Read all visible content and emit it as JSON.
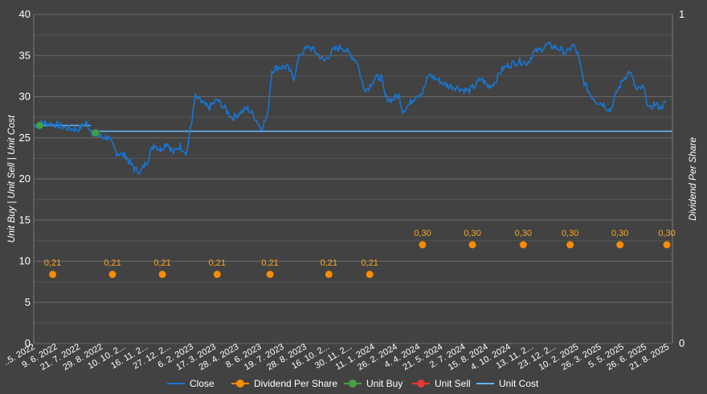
{
  "chart_data": {
    "type": "line",
    "ylabel": "Unit Buy | Unit Sell | Unit Cost",
    "y2label": "Dividend Per Share",
    "ylim": [
      0,
      40
    ],
    "y2lim": [
      0,
      1
    ],
    "yticks": [
      "0",
      "5",
      "10",
      "15",
      "20",
      "25",
      "30",
      "35",
      "40"
    ],
    "y2ticks": [
      "0",
      "1"
    ],
    "grid": true,
    "legend_position": "bottom",
    "x_labels": [
      "..5. 2022",
      "9. 6. 2022",
      "21. 7. 2022",
      "29. 8. 2022",
      "10. 10. 2...",
      "16. 11. 2...",
      "27. 12. 2...",
      "6. 2. 2023",
      "17. 3. 2023",
      "28. 4. 2023",
      "8. 6. 2023",
      "19. 7. 2023",
      "28. 8. 2023",
      "16. 10. 2...",
      "30. 11. 2...",
      "11. 1. 2024",
      "26. 2. 2024",
      "4. 4. 2024",
      "21. 5. 2024",
      "2. 7. 2024",
      "15. 8. 2024",
      "4. 10. 2024",
      "13. 11. 2...",
      "23. 12. 2...",
      "10. 2. 2025",
      "26. 3. 2025",
      "5. 5. 2025",
      "26. 6. 2025",
      "21. 8. 2025"
    ],
    "close_anchors": [
      [
        0,
        26.5
      ],
      [
        0.5,
        26.8
      ],
      [
        1,
        26.6
      ],
      [
        1.5,
        26.2
      ],
      [
        2,
        26.0
      ],
      [
        2.4,
        26.8
      ],
      [
        2.7,
        25.6
      ],
      [
        3,
        25.2
      ],
      [
        3.4,
        25.0
      ],
      [
        3.8,
        23.2
      ],
      [
        4.2,
        22.8
      ],
      [
        4.6,
        21.2
      ],
      [
        4.9,
        20.9
      ],
      [
        5.2,
        22.2
      ],
      [
        5.5,
        24.2
      ],
      [
        5.8,
        23.6
      ],
      [
        6.1,
        24.4
      ],
      [
        6.4,
        23.2
      ],
      [
        6.7,
        24.0
      ],
      [
        7.0,
        23.2
      ],
      [
        7.2,
        26.5
      ],
      [
        7.4,
        30.0
      ],
      [
        7.7,
        29.3
      ],
      [
        8.0,
        28.6
      ],
      [
        8.4,
        29.6
      ],
      [
        8.8,
        28.4
      ],
      [
        9.1,
        27.4
      ],
      [
        9.4,
        28.0
      ],
      [
        9.8,
        28.6
      ],
      [
        10.1,
        27.6
      ],
      [
        10.4,
        26.2
      ],
      [
        10.7,
        27.6
      ],
      [
        10.9,
        33.2
      ],
      [
        11.2,
        33.6
      ],
      [
        11.6,
        33.6
      ],
      [
        11.9,
        32.3
      ],
      [
        12.2,
        35.2
      ],
      [
        12.6,
        36.1
      ],
      [
        13.0,
        35.2
      ],
      [
        13.3,
        34.3
      ],
      [
        13.7,
        35.6
      ],
      [
        14.1,
        36.1
      ],
      [
        14.5,
        35.1
      ],
      [
        14.8,
        34.3
      ],
      [
        15.1,
        31.1
      ],
      [
        15.3,
        31.0
      ],
      [
        15.6,
        32.2
      ],
      [
        15.9,
        32.4
      ],
      [
        16.1,
        29.9
      ],
      [
        16.4,
        29.6
      ],
      [
        16.7,
        30.2
      ],
      [
        16.9,
        28.3
      ],
      [
        17.2,
        29.1
      ],
      [
        17.5,
        30.2
      ],
      [
        17.8,
        30.5
      ],
      [
        18.1,
        32.7
      ],
      [
        18.4,
        32.2
      ],
      [
        18.7,
        31.7
      ],
      [
        19.0,
        31.3
      ],
      [
        19.3,
        31.2
      ],
      [
        19.6,
        30.9
      ],
      [
        19.9,
        30.7
      ],
      [
        20.2,
        31.3
      ],
      [
        20.5,
        32.2
      ],
      [
        20.8,
        31.2
      ],
      [
        21.1,
        31.7
      ],
      [
        21.4,
        33.2
      ],
      [
        21.7,
        33.8
      ],
      [
        22.0,
        34.1
      ],
      [
        22.3,
        34.3
      ],
      [
        22.6,
        34.1
      ],
      [
        22.9,
        35.4
      ],
      [
        23.2,
        35.7
      ],
      [
        23.5,
        36.3
      ],
      [
        23.8,
        36.1
      ],
      [
        24.1,
        35.8
      ],
      [
        24.4,
        35.3
      ],
      [
        24.7,
        36.3
      ],
      [
        24.9,
        35.2
      ],
      [
        25.2,
        31.7
      ],
      [
        25.5,
        30.2
      ],
      [
        25.8,
        29.4
      ],
      [
        26.1,
        29.1
      ],
      [
        26.4,
        28.3
      ],
      [
        26.7,
        30.6
      ],
      [
        27.0,
        32.2
      ],
      [
        27.3,
        33.1
      ],
      [
        27.6,
        30.7
      ],
      [
        27.9,
        31.2
      ],
      [
        28.2,
        28.3
      ],
      [
        28.4,
        29.1
      ],
      [
        28.7,
        28.7
      ],
      [
        28.95,
        29.3
      ]
    ],
    "series": [
      {
        "name": "Close",
        "type": "line",
        "color": "#1976d2"
      },
      {
        "name": "Dividend Per Share",
        "type": "scatter",
        "color": "#fb8c00",
        "axis": "y2",
        "points": [
          {
            "x": 0.95,
            "value": 0.21,
            "label": "0,21"
          },
          {
            "x": 3.95,
            "value": 0.21,
            "label": "0,21"
          },
          {
            "x": 6.45,
            "value": 0.21,
            "label": "0,21"
          },
          {
            "x": 9.2,
            "value": 0.21,
            "label": "0,21"
          },
          {
            "x": 11.85,
            "value": 0.21,
            "label": "0,21"
          },
          {
            "x": 14.8,
            "value": 0.21,
            "label": "0,21"
          },
          {
            "x": 16.85,
            "value": 0.21,
            "label": "0,21"
          },
          {
            "x": 19.5,
            "value": 0.3,
            "label": "0,30"
          },
          {
            "x": 22.0,
            "value": 0.3,
            "label": "0,30"
          },
          {
            "x": 24.55,
            "value": 0.3,
            "label": "0,30"
          },
          {
            "x": 26.9,
            "value": 0.3,
            "label": "0,30"
          },
          {
            "x": 29.4,
            "value": 0.3,
            "label": "0,30"
          },
          {
            "x": 31.75,
            "value": 0.3,
            "label": "0,30"
          }
        ]
      },
      {
        "name": "Unit Buy",
        "type": "scatter",
        "color": "#43a047",
        "points": [
          {
            "x": 0.05,
            "value": 26.5
          },
          {
            "x": 2.72,
            "value": 25.6
          }
        ]
      },
      {
        "name": "Unit Sell",
        "type": "scatter",
        "color": "#e53935",
        "points": []
      },
      {
        "name": "Unit Cost",
        "type": "line",
        "color": "#64b5f6",
        "segments": [
          {
            "x0": 0,
            "x1": 2.72,
            "value": 26.5
          },
          {
            "x0": 2.72,
            "x1": 34.2,
            "value": 25.8
          }
        ]
      }
    ]
  }
}
